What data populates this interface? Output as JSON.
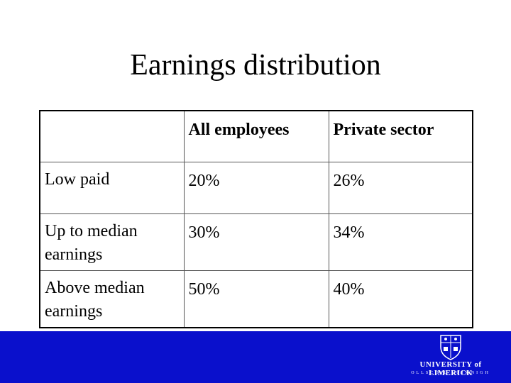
{
  "title": "Earnings distribution",
  "table": {
    "columns": [
      "All employees",
      "Private sector"
    ],
    "rows": [
      [
        "Low paid",
        "20%",
        "26%"
      ],
      [
        "Up to median earnings",
        "30%",
        "34%"
      ],
      [
        "Above median earnings",
        "50%",
        "40%"
      ]
    ]
  },
  "footer": {
    "logo_name": "UNIVERSITY of LIMERICK",
    "logo_subtitle": "OLLSCOIL LUIMNIGH"
  }
}
